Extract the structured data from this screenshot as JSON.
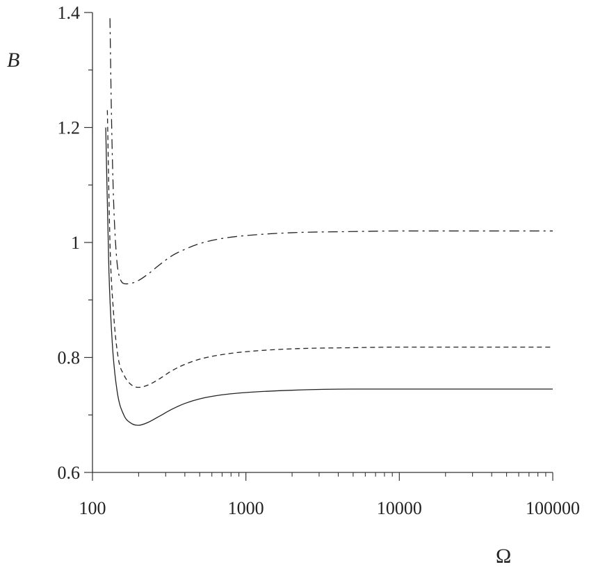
{
  "chart_data": {
    "type": "line",
    "xlabel": "Ω",
    "ylabel": "B",
    "xscale": "log",
    "xlim": [
      100,
      100000
    ],
    "ylim": [
      0.6,
      1.4
    ],
    "x_tick_labels": [
      "100",
      "1000",
      "10000",
      "100000"
    ],
    "y_tick_labels": [
      "0.6",
      "0.8",
      "1",
      "1.2",
      "1.4"
    ],
    "grid": false,
    "legend": "none",
    "series": [
      {
        "style": "solid",
        "x": [
          122,
          128,
          135,
          145,
          160,
          180,
          200,
          230,
          270,
          330,
          400,
          500,
          700,
          1000,
          2000,
          5000,
          10000,
          100000
        ],
        "y": [
          1.2,
          0.95,
          0.82,
          0.74,
          0.7,
          0.685,
          0.682,
          0.687,
          0.697,
          0.71,
          0.72,
          0.728,
          0.735,
          0.739,
          0.743,
          0.745,
          0.745,
          0.745
        ]
      },
      {
        "style": "dashed",
        "x": [
          125,
          130,
          137,
          147,
          160,
          180,
          200,
          230,
          270,
          330,
          400,
          500,
          700,
          1000,
          2000,
          5000,
          10000,
          100000
        ],
        "y": [
          1.23,
          1.0,
          0.88,
          0.8,
          0.77,
          0.752,
          0.748,
          0.752,
          0.762,
          0.777,
          0.788,
          0.797,
          0.805,
          0.81,
          0.815,
          0.817,
          0.818,
          0.818
        ]
      },
      {
        "style": "dash-dot",
        "x": [
          130,
          133,
          137,
          143,
          150,
          165,
          185,
          200,
          230,
          270,
          330,
          400,
          500,
          700,
          1000,
          2000,
          5000,
          10000,
          100000
        ],
        "y": [
          1.39,
          1.22,
          1.08,
          0.98,
          0.94,
          0.928,
          0.93,
          0.934,
          0.945,
          0.96,
          0.977,
          0.988,
          0.998,
          1.007,
          1.012,
          1.017,
          1.019,
          1.02,
          1.02
        ]
      }
    ]
  }
}
